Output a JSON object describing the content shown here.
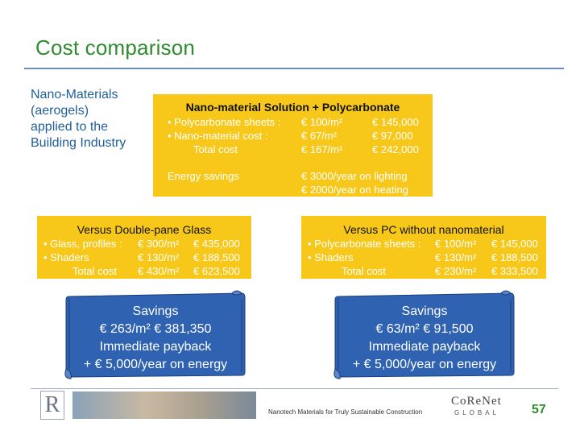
{
  "title": "Cost comparison",
  "description": {
    "lines": [
      "Nano-Materials",
      "(aerogels)",
      "applied to the",
      "Building Industry"
    ]
  },
  "main_box": {
    "title": "Nano-material Solution + Polycarbonate",
    "rows": [
      {
        "label": "• Polycarbonate sheets :",
        "unit": "€ 100/m²",
        "total": "€ 145,000"
      },
      {
        "label": "• Nano-material cost :",
        "unit": "€ 67/m²",
        "total": "€ 97,000"
      },
      {
        "label": "Total cost",
        "unit": "€ 167/m²",
        "total": "€ 242,000"
      }
    ],
    "energy_label": "Energy savings",
    "energy_values": [
      "€ 3000/year on lighting",
      "€ 2000/year on heating"
    ]
  },
  "double_pane": {
    "title": "Versus Double-pane Glass",
    "rows": [
      {
        "label": "• Glass, profiles :",
        "unit": "€ 300/m²",
        "total": "€ 435,000"
      },
      {
        "label": "• Shaders",
        "unit": "€ 130/m²",
        "total": "€ 188,500"
      },
      {
        "label": "Total cost",
        "unit": "€ 430/m²",
        "total": "€ 623,500"
      }
    ]
  },
  "pc_without": {
    "title": "Versus PC without nanomaterial",
    "rows": [
      {
        "label": "• Polycarbonate sheets :",
        "unit": "€ 100/m²",
        "total": "€ 145,000"
      },
      {
        "label": "• Shaders",
        "unit": "€ 130/m²",
        "total": "€ 188,500"
      },
      {
        "label": "Total cost",
        "unit": "€ 230/m²",
        "total": "€ 333,500"
      }
    ]
  },
  "savings_left": {
    "lines": [
      "Savings",
      "€ 263/m²     € 381,350",
      "Immediate payback",
      "+ € 5,000/year on energy"
    ]
  },
  "savings_right": {
    "lines": [
      "Savings",
      "€ 63/m²     € 91,500",
      "Immediate payback",
      "+ € 5,000/year on energy"
    ]
  },
  "footer": {
    "text": "Nanotech Materials for Truly Sustainable Construction",
    "logo_letter": "R",
    "corenet_name": "CoReNet",
    "corenet_sub": "GLOBAL",
    "page_number": "57"
  },
  "colors": {
    "title_green": "#2e8b2e",
    "box_yellow": "#f7c81a",
    "scroll_blue": "#2f62b0",
    "desc_blue": "#1f5f9a"
  }
}
